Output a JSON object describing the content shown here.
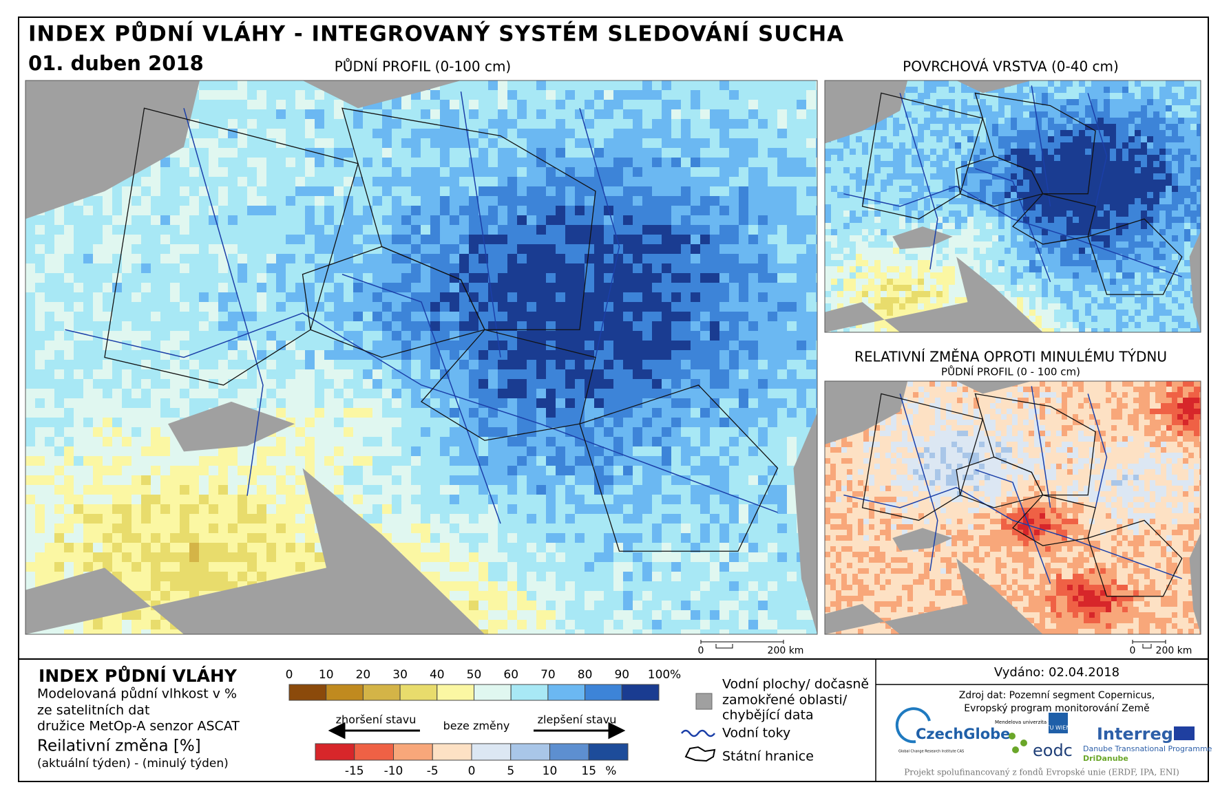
{
  "header": {
    "title": "INDEX PŮDNÍ VLÁHY - INTEGROVANÝ SYSTÉM SLEDOVÁNÍ SUCHA",
    "date": "01. duben 2018"
  },
  "maps": [
    {
      "title": "PŮDNÍ PROFIL (0-100 cm)",
      "scale": [
        "0",
        "200 km"
      ]
    },
    {
      "title": "POVRCHOVÁ VRSTVA (0-40 cm)"
    },
    {
      "title": "RELATIVNÍ ZMĚNA OPROTI MINULÉMU TÝDNU",
      "subtitle": "PŮDNÍ PROFIL (0 - 100 cm)",
      "scale": [
        "0",
        "200 km"
      ]
    }
  ],
  "legend": {
    "title": "INDEX PŮDNÍ VLÁHY",
    "description": [
      "Modelovaná půdní vlhkost v %",
      "ze satelitních dat",
      "družice MetOp-A senzor ASCAT"
    ],
    "moisture_scale": {
      "labels": [
        "0",
        "10",
        "20",
        "30",
        "40",
        "50",
        "60",
        "70",
        "80",
        "90",
        "100"
      ],
      "unit": "%",
      "colors": [
        "#8b4a0b",
        "#c08a1f",
        "#d4b447",
        "#e8dc6c",
        "#fbf7a3",
        "#e0f7f0",
        "#a8e8f5",
        "#6bb8f2",
        "#3d84d8",
        "#1a3c91"
      ]
    },
    "change_title": "Reilativní změna [%]",
    "change_subtitle": "(aktuální týden) - (minulý týden)",
    "arrows": {
      "worse": "zhoršení stavu",
      "none": "beze změny",
      "better": "zlepšení stavu"
    },
    "change_scale": {
      "labels": [
        "-15",
        "-10",
        "-5",
        "0",
        "5",
        "10",
        "15"
      ],
      "unit": "%",
      "colors": [
        "#d7262a",
        "#ef6145",
        "#f8a77a",
        "#fde1c4",
        "#dce7f3",
        "#a9c6e8",
        "#5d8fd0",
        "#1d4c9a"
      ]
    },
    "symbols": [
      "Vodní plochy/ dočasně",
      "zamokřené oblasti/",
      "chybějící data",
      "Vodní toky",
      "Státní hranice"
    ]
  },
  "credits": {
    "issued": "Vydáno: 02.04.2018",
    "source": [
      "Zdroj dat: Pozemní segment Copernicus,",
      "Evropský program monitorování Země"
    ],
    "logos": [
      "CzechGlobe",
      "Global Change Research Institute CAS",
      "Mendelova univerzita v Brně",
      "TU WIEN",
      "eodc",
      "Interreg",
      "Danube Transnational Programme",
      "DriDanube"
    ],
    "footer": "Projekt spolufinancovaný z fondů Evropské unie (ERDF, IPA, ENI)"
  }
}
